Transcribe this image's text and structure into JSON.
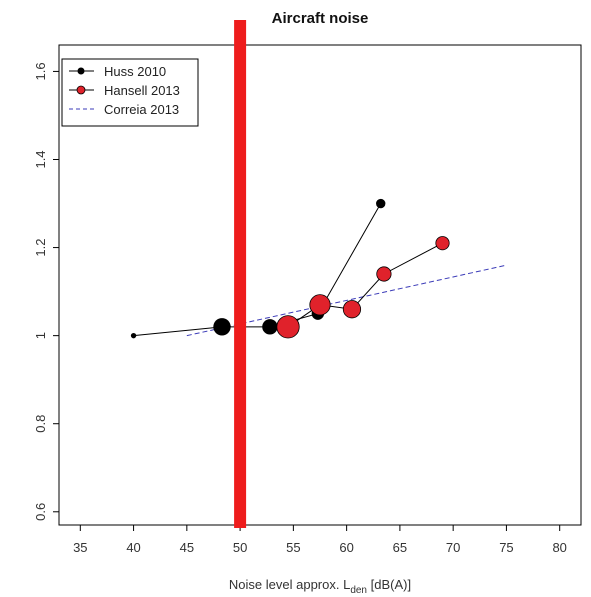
{
  "chart_data": {
    "type": "line",
    "title": "Aircraft noise",
    "xlabel": {
      "prefix": "Noise level approx. L",
      "subscript": "den",
      "suffix": " [dB(A)]"
    },
    "ylabel": "",
    "xlim": [
      33,
      82
    ],
    "ylim": [
      0.57,
      1.66
    ],
    "xticks": [
      35,
      40,
      45,
      50,
      55,
      60,
      65,
      70,
      75,
      80
    ],
    "yticks": [
      0.6,
      0.8,
      1,
      1.2,
      1.4,
      1.6
    ],
    "ytick_labels": [
      "0.6",
      "0.8",
      "1",
      "1.2",
      "1.4",
      "1.6"
    ],
    "legend_position": "top-left",
    "grid": false,
    "threshold_line": {
      "x": 50,
      "color": "#ee1c1c"
    },
    "series": [
      {
        "name": "Huss 2010",
        "color": "#000000",
        "line_color": "#000000",
        "points": [
          {
            "x": 40,
            "y": 1.0,
            "weight": 0.15
          },
          {
            "x": 48.3,
            "y": 1.02,
            "weight": 0.75
          },
          {
            "x": 52.8,
            "y": 1.02,
            "weight": 0.65
          },
          {
            "x": 57.3,
            "y": 1.05,
            "weight": 0.5
          },
          {
            "x": 63.2,
            "y": 1.3,
            "weight": 0.35
          }
        ]
      },
      {
        "name": "Hansell 2013",
        "color": "#e0222b",
        "line_color": "#000000",
        "points": [
          {
            "x": 54.5,
            "y": 1.02,
            "weight": 1.0
          },
          {
            "x": 57.5,
            "y": 1.07,
            "weight": 0.9
          },
          {
            "x": 60.5,
            "y": 1.06,
            "weight": 0.75
          },
          {
            "x": 63.5,
            "y": 1.14,
            "weight": 0.6
          },
          {
            "x": 69,
            "y": 1.21,
            "weight": 0.55
          }
        ]
      },
      {
        "name": "Correia 2013",
        "color": "#3b3bb8",
        "dashed": true,
        "x": [
          45,
          75
        ],
        "y": [
          1.0,
          1.16
        ]
      }
    ]
  }
}
